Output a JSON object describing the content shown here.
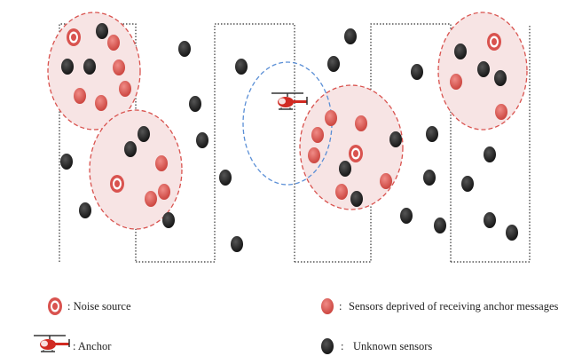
{
  "legend": {
    "noise_source": ": Noise source",
    "deprived_sensors": "Sensors deprived of receiving anchor messages",
    "deprived_prefix": ":",
    "anchor": ": Anchor",
    "unknown_prefix": ":",
    "unknown_sensors": "Unknown sensors"
  },
  "icons": {
    "noise_source": "concentric-ring-icon",
    "deprived_sensor": "red-node-icon",
    "unknown_sensor": "black-node-icon",
    "anchor": "helicopter-icon"
  },
  "colors": {
    "noise_fill": "#f7e4e4",
    "noise_stroke": "#d9534f",
    "deprived_node": "#d9534f",
    "unknown_node": "#222222",
    "anchor_range_stroke": "#5b8fd6",
    "path_stroke": "#333333"
  }
}
